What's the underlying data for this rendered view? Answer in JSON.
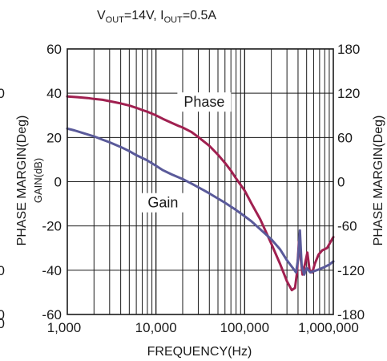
{
  "chart_data": {
    "type": "line",
    "condition": {
      "v_main": "V",
      "v_sub": "OUT",
      "v_value": "=14V, ",
      "i_main": "I",
      "i_sub": "OUT",
      "i_value": "=0.5A"
    },
    "xlabel": "FREQUENCY(Hz)",
    "ylabel_left": "GAIN(dB)",
    "ylabel_left_outer": "PHASE MARGIN(Deg)",
    "ylabel_right": "PHASE MARGIN(Deg)",
    "x_scale": "log",
    "xlim": [
      1000,
      1000000
    ],
    "ylim_left": [
      -60,
      60
    ],
    "ylim_right": [
      -180,
      180
    ],
    "x_ticks": [
      {
        "value": 1000,
        "label": "1,000"
      },
      {
        "value": 10000,
        "label": "10,000"
      },
      {
        "value": 100000,
        "label": "100,000"
      },
      {
        "value": 1000000,
        "label": "1,000,000"
      }
    ],
    "y_left_ticks": [
      {
        "value": 60,
        "label": "60"
      },
      {
        "value": 40,
        "label": "40"
      },
      {
        "value": 20,
        "label": "20"
      },
      {
        "value": 0,
        "label": "0"
      },
      {
        "value": -20,
        "label": "-20"
      },
      {
        "value": -40,
        "label": "-40"
      },
      {
        "value": -60,
        "label": "-60"
      }
    ],
    "y_right_ticks": [
      {
        "value": 180,
        "label": "180"
      },
      {
        "value": 120,
        "label": "120"
      },
      {
        "value": 60,
        "label": "60"
      },
      {
        "value": 0,
        "label": "0"
      },
      {
        "value": -60,
        "label": "-60"
      },
      {
        "value": -120,
        "label": "-120"
      },
      {
        "value": -180,
        "label": "-180"
      }
    ],
    "clipped_outer_labels": [
      {
        "label": "0",
        "y": 40
      },
      {
        "label": "0",
        "y": -40
      },
      {
        "label": "0",
        "y": -60
      },
      {
        "label": "00",
        "y": -64
      }
    ],
    "grid": true,
    "series": [
      {
        "name": "Phase",
        "axis": "left",
        "color": "#a02050",
        "x": [
          1000,
          1300,
          1700,
          2000,
          2500,
          3000,
          4000,
          5000,
          6000,
          7000,
          8000,
          10000,
          12000,
          15000,
          18000,
          20000,
          25000,
          30000,
          40000,
          50000,
          60000,
          70000,
          80000,
          100000,
          120000,
          150000,
          200000,
          250000,
          300000,
          340000,
          370000,
          390000,
          410000,
          430000,
          450000,
          480000,
          510000,
          540000,
          580000,
          620000,
          680000,
          750000,
          850000,
          1000000
        ],
        "y": [
          38.5,
          38.2,
          37.8,
          37.4,
          37,
          36.4,
          35.4,
          34.4,
          33.4,
          32.4,
          31.6,
          30,
          28.4,
          26.6,
          25.2,
          24.5,
          22.5,
          20.2,
          16.2,
          12.2,
          8.5,
          5,
          1.5,
          -4,
          -10,
          -17,
          -28,
          -37,
          -45,
          -49,
          -48,
          -41,
          -27,
          -35,
          -42,
          -37,
          -32,
          -40,
          -41,
          -37,
          -33,
          -31,
          -30,
          -25
        ]
      },
      {
        "name": "Gain",
        "axis": "left",
        "color": "#5a5a9a",
        "x": [
          1000,
          1200,
          1500,
          2000,
          2500,
          3000,
          4000,
          5000,
          6000,
          8000,
          10000,
          12000,
          15000,
          20000,
          25000,
          30000,
          40000,
          50000,
          60000,
          80000,
          100000,
          120000,
          150000,
          200000,
          250000,
          300000,
          350000,
          380000,
          400000,
          420000,
          440000,
          470000,
          500000,
          550000,
          600000,
          700000,
          800000,
          900000,
          1000000
        ],
        "y": [
          24,
          23.2,
          22,
          20.5,
          19,
          17.8,
          15.7,
          13.8,
          12,
          9.6,
          7.2,
          5.2,
          3.3,
          1.2,
          -0.8,
          -2.5,
          -5.3,
          -7.6,
          -9.5,
          -12.8,
          -15.6,
          -18,
          -21.5,
          -26,
          -30.5,
          -35.5,
          -39,
          -41,
          -35,
          -22,
          -38,
          -42,
          -39,
          -41,
          -40.5,
          -39.5,
          -38.5,
          -37.5,
          -36
        ]
      }
    ],
    "annotations": [
      {
        "text": "Phase",
        "x": 35000,
        "y": 36
      },
      {
        "text": "Gain",
        "x": 12000,
        "y": -9.5
      }
    ]
  }
}
